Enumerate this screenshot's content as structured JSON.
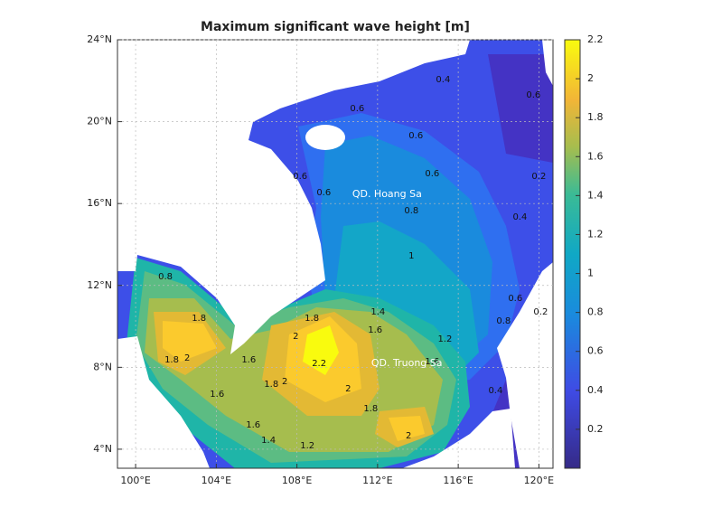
{
  "map": {
    "title": "Maximum significant wave height [m]",
    "xlim": [
      99.1,
      120.7
    ],
    "ylim": [
      3.07,
      24
    ],
    "xticks": [
      {
        "value": 100,
        "label": "100°E"
      },
      {
        "value": 104,
        "label": "104°E"
      },
      {
        "value": 108,
        "label": "108°E"
      },
      {
        "value": 112,
        "label": "112°E"
      },
      {
        "value": 116,
        "label": "116°E"
      },
      {
        "value": 120,
        "label": "120°E"
      }
    ],
    "yticks": [
      {
        "value": 4,
        "label": "4°N"
      },
      {
        "value": 8,
        "label": "8°N"
      },
      {
        "value": 12,
        "label": "12°N"
      },
      {
        "value": 16,
        "label": "16°N"
      },
      {
        "value": 20,
        "label": "20°N"
      },
      {
        "value": 24,
        "label": "24°N"
      }
    ],
    "grid": true,
    "colorbar": {
      "lim": [
        0,
        2.2
      ],
      "ticks": [
        0.2,
        0.4,
        0.6,
        0.8,
        1,
        1.2,
        1.4,
        1.6,
        1.8,
        2,
        2.2
      ]
    },
    "places": [
      {
        "name": "QD. Hoang Sa",
        "lon": 112.47,
        "lat": 16.45
      },
      {
        "name": "QD. Truong Sa",
        "lon": 113.45,
        "lat": 8.19
      }
    ],
    "contour_labels": [
      {
        "value": 0.4,
        "lon": 115.25,
        "lat": 22.05
      },
      {
        "value": 0.6,
        "lon": 119.73,
        "lat": 21.31
      },
      {
        "value": 0.6,
        "lon": 110.99,
        "lat": 20.64
      },
      {
        "value": 0.6,
        "lon": 113.9,
        "lat": 19.32
      },
      {
        "value": 0.6,
        "lon": 114.71,
        "lat": 17.47
      },
      {
        "value": 0.6,
        "lon": 108.16,
        "lat": 17.33
      },
      {
        "value": 0.6,
        "lon": 109.33,
        "lat": 16.54
      },
      {
        "value": 0.8,
        "lon": 113.68,
        "lat": 15.66
      },
      {
        "value": 0.4,
        "lon": 119.06,
        "lat": 15.35
      },
      {
        "value": 1,
        "lon": 113.68,
        "lat": 13.45
      },
      {
        "value": 0.8,
        "lon": 101.48,
        "lat": 12.43
      },
      {
        "value": 1.4,
        "lon": 112.02,
        "lat": 10.71
      },
      {
        "value": 1.6,
        "lon": 111.88,
        "lat": 9.83
      },
      {
        "value": 1.2,
        "lon": 115.34,
        "lat": 9.39
      },
      {
        "value": 2,
        "lon": 107.94,
        "lat": 9.52
      },
      {
        "value": 1.8,
        "lon": 108.74,
        "lat": 10.4
      },
      {
        "value": 2.2,
        "lon": 109.1,
        "lat": 8.19
      },
      {
        "value": 2,
        "lon": 107.4,
        "lat": 7.31
      },
      {
        "value": 1.8,
        "lon": 106.73,
        "lat": 7.18
      },
      {
        "value": 1.6,
        "lon": 105.61,
        "lat": 8.37
      },
      {
        "value": 1.6,
        "lon": 104.04,
        "lat": 6.69
      },
      {
        "value": 1.8,
        "lon": 101.79,
        "lat": 8.37
      },
      {
        "value": 2,
        "lon": 102.56,
        "lat": 8.46
      },
      {
        "value": 1.8,
        "lon": 103.14,
        "lat": 10.4
      },
      {
        "value": 1.6,
        "lon": 105.83,
        "lat": 5.19
      },
      {
        "value": 1.4,
        "lon": 106.59,
        "lat": 4.44
      },
      {
        "value": 1.2,
        "lon": 108.52,
        "lat": 4.18
      },
      {
        "value": 2,
        "lon": 110.54,
        "lat": 6.96
      },
      {
        "value": 1.8,
        "lon": 111.66,
        "lat": 5.99
      },
      {
        "value": 2,
        "lon": 113.54,
        "lat": 4.66
      },
      {
        "value": 1.6,
        "lon": 114.71,
        "lat": 8.28
      },
      {
        "value": 0.6,
        "lon": 118.83,
        "lat": 11.37
      },
      {
        "value": 0.8,
        "lon": 118.25,
        "lat": 10.27
      },
      {
        "value": 0.2,
        "lon": 120.09,
        "lat": 10.71
      },
      {
        "value": 0.4,
        "lon": 117.85,
        "lat": 6.87
      },
      {
        "value": 0.2,
        "lon": 120.0,
        "lat": 17.33
      }
    ]
  }
}
